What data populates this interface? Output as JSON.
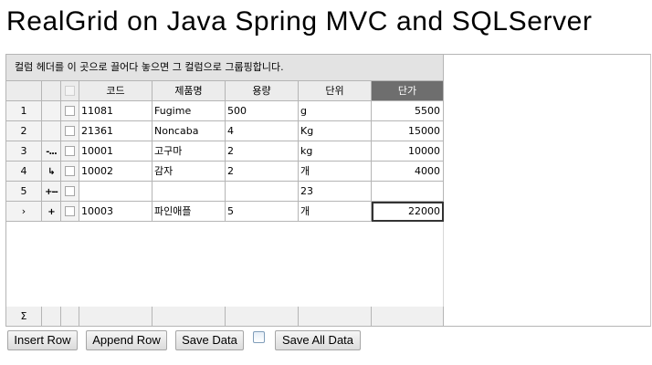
{
  "page_title": "RealGrid on Java Spring MVC and SQLServer",
  "grid": {
    "group_panel_text": "컬럼 헤더를 이 곳으로 끌어다 놓으면 그 컬럼으로 그룹핑합니다.",
    "columns": [
      "코드",
      "제품명",
      "용량",
      "단위",
      "단가"
    ],
    "sorted_column": "단가",
    "rows": [
      {
        "indicator": "1",
        "state": "",
        "code": "11081",
        "name": "Fugime",
        "qty": "500",
        "unit": "g",
        "price": "5500"
      },
      {
        "indicator": "2",
        "state": "",
        "code": "21361",
        "name": "Noncaba",
        "qty": "4",
        "unit": "Kg",
        "price": "15000"
      },
      {
        "indicator": "3",
        "state": "updated",
        "code": "10001",
        "name": "고구마",
        "qty": "2",
        "unit": "kg",
        "price": "10000"
      },
      {
        "indicator": "4",
        "state": "updated-moved",
        "code": "10002",
        "name": "감자",
        "qty": "2",
        "unit": "개",
        "price": "4000"
      },
      {
        "indicator": "5",
        "state": "created-updated",
        "code": "",
        "name": "",
        "qty": "",
        "unit": "23",
        "price": ""
      },
      {
        "indicator": "›",
        "state": "created",
        "code": "10003",
        "name": "파인애플",
        "qty": "5",
        "unit": "개",
        "price": "22000"
      }
    ],
    "focused_cell": {
      "row": 5,
      "column": "단가"
    },
    "footer_symbol": "Σ"
  },
  "buttons": {
    "insert_row": "Insert Row",
    "append_row": "Append Row",
    "save_data": "Save Data",
    "save_all_data": "Save All Data"
  },
  "checkbox_checked": false
}
